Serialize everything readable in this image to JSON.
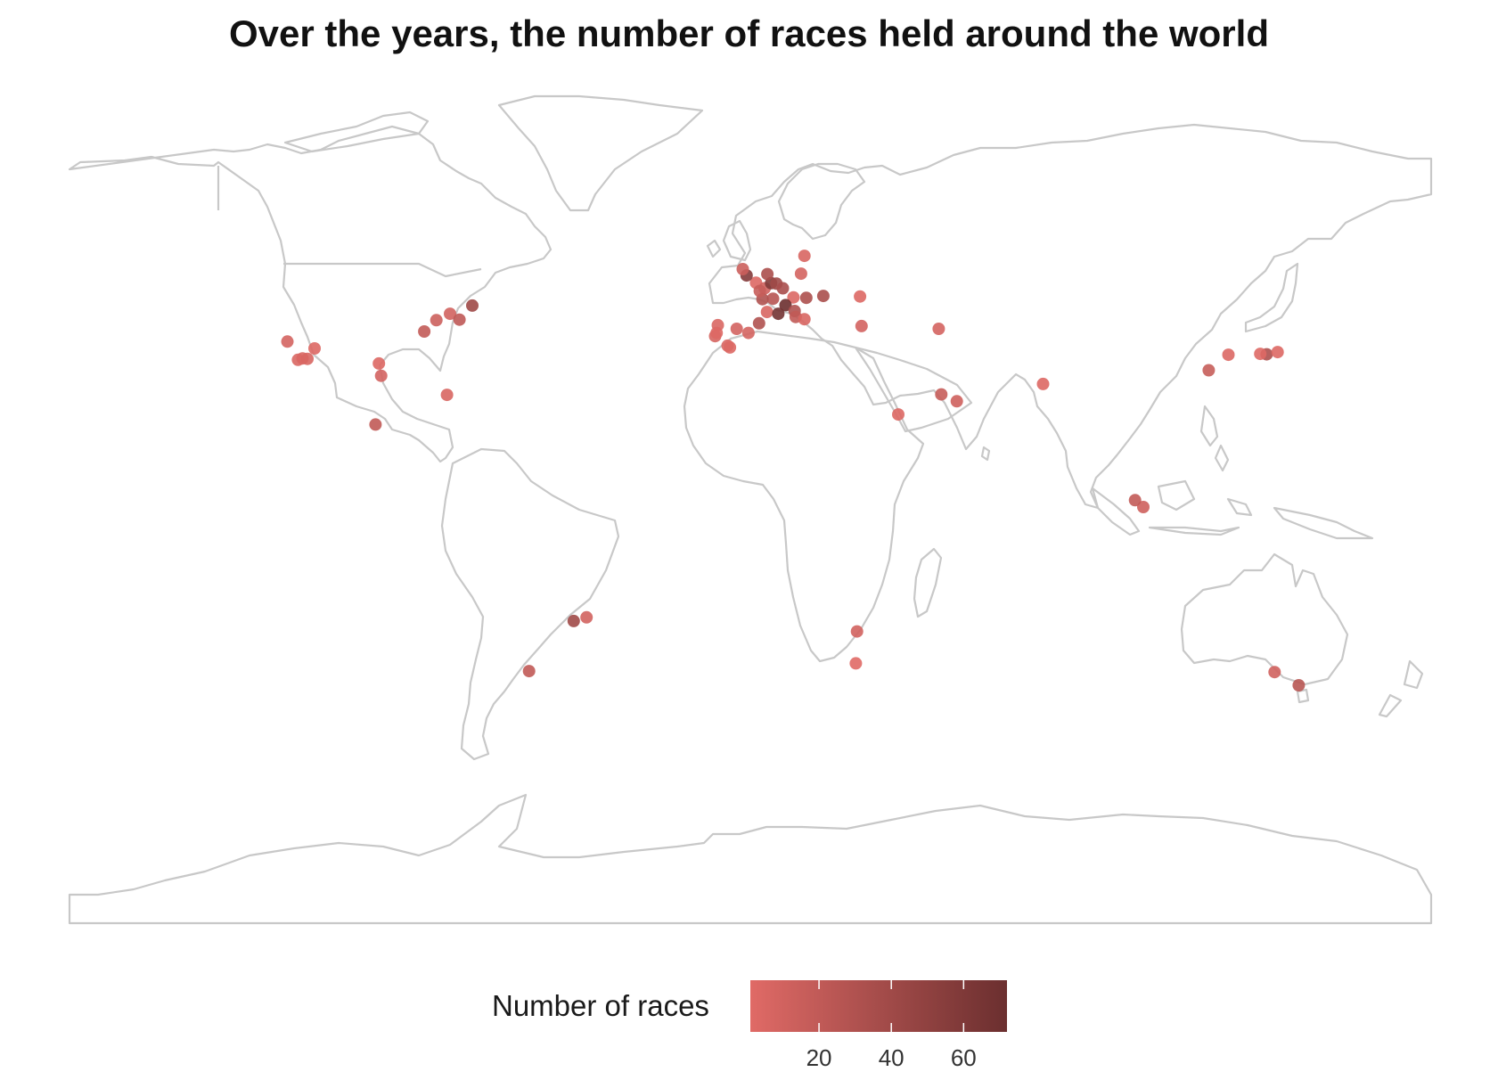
{
  "title": "Over the years, the number of races held around the world",
  "legend": {
    "title": "Number of races",
    "min": 1,
    "max": 72,
    "ticks": [
      20,
      40,
      60
    ],
    "color_low": "#e06a66",
    "color_high": "#6b2f2f"
  },
  "chart_data": {
    "type": "scatter",
    "projection": "equirectangular",
    "x_range": [
      -180,
      180
    ],
    "y_range": [
      -90,
      90
    ],
    "basemap": "world country outlines, light gray (#c8c8c8)",
    "points": [
      {
        "lon": -122.4,
        "lat": 37.6,
        "races": 8
      },
      {
        "lon": -118.4,
        "lat": 33.9,
        "races": 6
      },
      {
        "lon": -119.6,
        "lat": 33.6,
        "races": 5
      },
      {
        "lon": -117.1,
        "lat": 33.8,
        "races": 6
      },
      {
        "lon": -115.2,
        "lat": 36.1,
        "races": 3
      },
      {
        "lon": -97.6,
        "lat": 30.1,
        "races": 9
      },
      {
        "lon": -98.2,
        "lat": 32.8,
        "races": 3
      },
      {
        "lon": -86.2,
        "lat": 39.8,
        "races": 19
      },
      {
        "lon": -83.0,
        "lat": 42.3,
        "races": 13
      },
      {
        "lon": -79.4,
        "lat": 43.7,
        "races": 10
      },
      {
        "lon": -76.9,
        "lat": 42.4,
        "races": 21
      },
      {
        "lon": -73.5,
        "lat": 45.5,
        "races": 41
      },
      {
        "lon": -80.2,
        "lat": 25.9,
        "races": 6
      },
      {
        "lon": -99.1,
        "lat": 19.4,
        "races": 20
      },
      {
        "lon": -46.7,
        "lat": -23.7,
        "races": 40
      },
      {
        "lon": -43.3,
        "lat": -22.9,
        "races": 10
      },
      {
        "lon": -58.5,
        "lat": -34.7,
        "races": 20
      },
      {
        "lon": -9.3,
        "lat": 38.8,
        "races": 7
      },
      {
        "lon": -8.6,
        "lat": 41.2,
        "races": 5
      },
      {
        "lon": -8.9,
        "lat": 39.5,
        "races": 3
      },
      {
        "lon": -5.4,
        "lat": 36.3,
        "races": 3
      },
      {
        "lon": -6.0,
        "lat": 36.7,
        "races": 4
      },
      {
        "lon": -0.5,
        "lat": 39.5,
        "races": 8
      },
      {
        "lon": 2.3,
        "lat": 41.6,
        "races": 30
      },
      {
        "lon": 4.4,
        "lat": 44.1,
        "races": 6
      },
      {
        "lon": -3.6,
        "lat": 40.4,
        "races": 9
      },
      {
        "lon": 1.5,
        "lat": 50.5,
        "races": 3
      },
      {
        "lon": -1.0,
        "lat": 52.1,
        "races": 57
      },
      {
        "lon": -2.0,
        "lat": 53.5,
        "races": 14
      },
      {
        "lon": 3.8,
        "lat": 49.3,
        "races": 12
      },
      {
        "lon": 5.5,
        "lat": 50.4,
        "races": 59
      },
      {
        "lon": 4.5,
        "lat": 52.4,
        "races": 33
      },
      {
        "lon": 6.9,
        "lat": 50.3,
        "races": 40
      },
      {
        "lon": 8.6,
        "lat": 49.3,
        "races": 35
      },
      {
        "lon": 6.0,
        "lat": 47.0,
        "races": 26
      },
      {
        "lon": 3.2,
        "lat": 46.9,
        "races": 30
      },
      {
        "lon": 2.5,
        "lat": 48.7,
        "races": 17
      },
      {
        "lon": 11.4,
        "lat": 47.3,
        "races": 4
      },
      {
        "lon": 14.8,
        "lat": 47.2,
        "races": 32
      },
      {
        "lon": 9.3,
        "lat": 45.6,
        "races": 72
      },
      {
        "lon": 11.7,
        "lat": 44.3,
        "races": 30
      },
      {
        "lon": 7.4,
        "lat": 43.7,
        "races": 67
      },
      {
        "lon": 12.0,
        "lat": 43.0,
        "races": 20
      },
      {
        "lon": 14.3,
        "lat": 42.5,
        "races": 6
      },
      {
        "lon": 19.3,
        "lat": 47.6,
        "races": 34
      },
      {
        "lon": 13.4,
        "lat": 52.5,
        "races": 8
      },
      {
        "lon": 14.3,
        "lat": 56.4,
        "races": 6
      },
      {
        "lon": 29.0,
        "lat": 47.5,
        "races": 3
      },
      {
        "lon": 29.4,
        "lat": 41.0,
        "races": 9
      },
      {
        "lon": 49.8,
        "lat": 40.4,
        "races": 8
      },
      {
        "lon": 50.5,
        "lat": 26.0,
        "races": 17
      },
      {
        "lon": 54.6,
        "lat": 24.5,
        "races": 12
      },
      {
        "lon": 39.1,
        "lat": 21.6,
        "races": 3
      },
      {
        "lon": 77.4,
        "lat": 28.3,
        "races": 3
      },
      {
        "lon": 121.2,
        "lat": 31.3,
        "races": 16
      },
      {
        "lon": 126.4,
        "lat": 34.7,
        "races": 4
      },
      {
        "lon": 136.5,
        "lat": 34.8,
        "races": 32
      },
      {
        "lon": 139.4,
        "lat": 35.3,
        "races": 3
      },
      {
        "lon": 134.8,
        "lat": 34.9,
        "races": 2
      },
      {
        "lon": 103.9,
        "lat": 1.3,
        "races": 12
      },
      {
        "lon": 101.7,
        "lat": 2.8,
        "races": 19
      },
      {
        "lon": 28.2,
        "lat": -26.0,
        "races": 10
      },
      {
        "lon": 27.9,
        "lat": -33.0,
        "races": 1
      },
      {
        "lon": 138.6,
        "lat": -34.9,
        "races": 11
      },
      {
        "lon": 145.0,
        "lat": -37.8,
        "races": 25
      }
    ]
  }
}
